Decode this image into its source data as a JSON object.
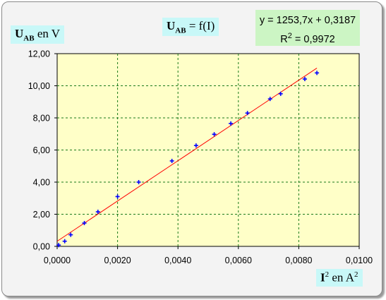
{
  "chart_data": {
    "type": "scatter",
    "title": {
      "main": "U",
      "sub": "AB",
      "rest": " = f(I)"
    },
    "ylabel": {
      "main": "U",
      "sub": "AB",
      "rest": " en V"
    },
    "xlabel": {
      "main": "I",
      "sup": "2",
      "rest": "  en A",
      "sup2": "2"
    },
    "x_range": [
      0,
      0.01
    ],
    "y_range": [
      0,
      12
    ],
    "x_ticks": [
      "0,0000",
      "0,0020",
      "0,0040",
      "0,0060",
      "0,0080",
      "0,0100"
    ],
    "y_ticks": [
      "0,00",
      "2,00",
      "4,00",
      "6,00",
      "8,00",
      "10,00",
      "12,00"
    ],
    "x_tick_values": [
      0,
      0.002,
      0.004,
      0.006,
      0.008,
      0.01
    ],
    "y_tick_values": [
      0,
      2,
      4,
      6,
      8,
      10,
      12
    ],
    "grid": true,
    "points": [
      {
        "x": 5e-05,
        "y": 0.08
      },
      {
        "x": 0.00025,
        "y": 0.32
      },
      {
        "x": 0.00045,
        "y": 0.72
      },
      {
        "x": 0.0009,
        "y": 1.45
      },
      {
        "x": 0.00135,
        "y": 2.15
      },
      {
        "x": 0.002,
        "y": 3.1
      },
      {
        "x": 0.0027,
        "y": 4.0
      },
      {
        "x": 0.0038,
        "y": 5.32
      },
      {
        "x": 0.0046,
        "y": 6.28
      },
      {
        "x": 0.0052,
        "y": 6.98
      },
      {
        "x": 0.00575,
        "y": 7.65
      },
      {
        "x": 0.0063,
        "y": 8.3
      },
      {
        "x": 0.00705,
        "y": 9.18
      },
      {
        "x": 0.0074,
        "y": 9.5
      },
      {
        "x": 0.0082,
        "y": 10.42
      },
      {
        "x": 0.0086,
        "y": 10.8
      }
    ],
    "trendline": {
      "slope": 1253.7,
      "intercept": 0.3187,
      "x_range": [
        0,
        0.0086
      ]
    },
    "equation": "y = 1253,7x + 0,3187",
    "r_squared": {
      "label": "R",
      "sup": "2",
      "rest": " = 0,9972"
    },
    "colors": {
      "plot_background": "#ffffc8",
      "grid": "#1a7a1a",
      "points": "#0000ff",
      "trendline": "#ff0000",
      "label_box": "#c8f8f8",
      "equation_box": "#ccf5c4",
      "frame": "#f3f3f3"
    }
  }
}
